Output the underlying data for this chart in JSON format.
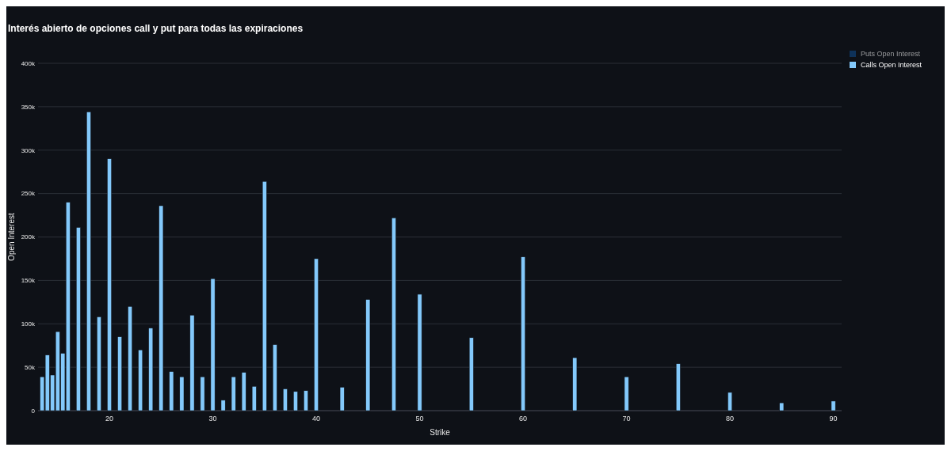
{
  "chart_data": {
    "type": "bar",
    "title": "Interés abierto de opciones call y put para todas las expiraciones",
    "xlabel": "Strike",
    "ylabel": "Open Interest",
    "x": [
      13.5,
      14,
      14.5,
      15,
      15.5,
      16,
      17,
      18,
      19,
      20,
      21,
      22,
      23,
      24,
      25,
      26,
      27,
      28,
      29,
      30,
      31,
      32,
      33,
      34,
      35,
      36,
      37,
      38,
      39,
      40,
      42.5,
      45,
      47.5,
      50,
      55,
      60,
      65,
      70,
      75,
      80,
      85,
      90
    ],
    "series": [
      {
        "name": "Puts Open Interest",
        "color": "#0e4d92",
        "values": [
          null,
          null,
          null,
          null,
          null,
          null,
          null,
          null,
          null,
          null,
          null,
          null,
          null,
          null,
          null,
          null,
          null,
          null,
          null,
          null,
          null,
          null,
          null,
          null,
          null,
          null,
          null,
          null,
          null,
          null,
          null,
          null,
          null,
          null,
          null,
          null,
          null,
          null,
          null,
          null,
          null,
          null
        ]
      },
      {
        "name": "Calls Open Interest",
        "color": "#83c9fb",
        "values": [
          39000,
          64000,
          41000,
          91000,
          66000,
          240000,
          211000,
          344000,
          108000,
          290000,
          85000,
          120000,
          70000,
          95000,
          236000,
          45000,
          39000,
          110000,
          39000,
          152000,
          12000,
          39000,
          44000,
          28000,
          264000,
          76000,
          25000,
          22000,
          23000,
          175000,
          27000,
          128000,
          222000,
          134000,
          84000,
          177000,
          61000,
          39000,
          54000,
          21000,
          9000,
          11000
        ]
      }
    ],
    "xlim": [
      13.1,
      90.8
    ],
    "xticks": [
      20,
      30,
      40,
      50,
      60,
      70,
      80,
      90
    ],
    "ylim": [
      0,
      400000
    ],
    "yticks": [
      {
        "value": 0,
        "label": "0"
      },
      {
        "value": 50000,
        "label": "50k"
      },
      {
        "value": 100000,
        "label": "100k"
      },
      {
        "value": 150000,
        "label": "150k"
      },
      {
        "value": 200000,
        "label": "200k"
      },
      {
        "value": 250000,
        "label": "250k"
      },
      {
        "value": 300000,
        "label": "300k"
      },
      {
        "value": 350000,
        "label": "350k"
      },
      {
        "value": 400000,
        "label": "400k"
      }
    ],
    "grid": "y",
    "legend": "top right"
  }
}
